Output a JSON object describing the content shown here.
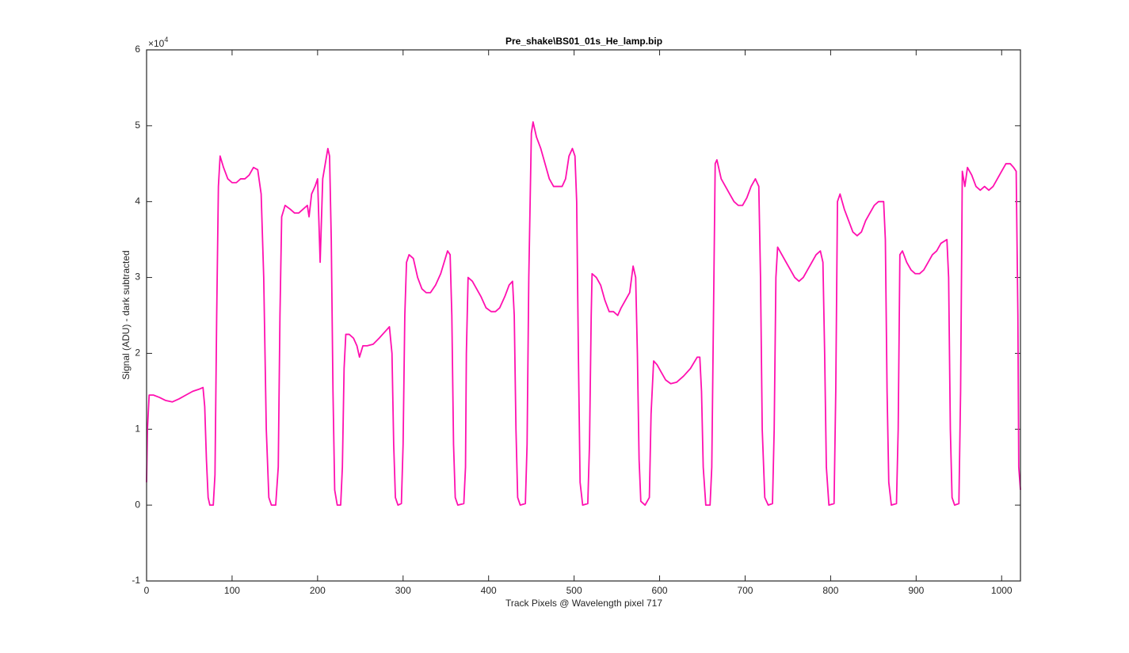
{
  "chart_data": {
    "type": "line",
    "title": "Pre_shake\\BS01_01s_He_lamp.bip",
    "x_label": "Track Pixels @ Wavelength pixel 717",
    "y_label": "Signal (ADU) - dark subtracted",
    "y_multiplier_base": "×10",
    "y_multiplier_exponent": "4",
    "color": "#ff10b0",
    "xlim": [
      0,
      1022
    ],
    "ylim": [
      -1,
      6
    ],
    "xticks": [
      0,
      100,
      200,
      300,
      400,
      500,
      600,
      700,
      800,
      900,
      1000
    ],
    "yticks": [
      -1,
      0,
      1,
      2,
      3,
      4,
      5,
      6
    ],
    "grid": false,
    "x": [
      0,
      1,
      3,
      8,
      15,
      22,
      30,
      38,
      46,
      54,
      62,
      66,
      68,
      70,
      72,
      74,
      78,
      80,
      82,
      84,
      86,
      90,
      95,
      100,
      105,
      110,
      115,
      120,
      125,
      130,
      134,
      137,
      140,
      143,
      146,
      151,
      154,
      156,
      158,
      162,
      168,
      173,
      178,
      183,
      188,
      190,
      193,
      197,
      200,
      203,
      206,
      209,
      212,
      214,
      216,
      218,
      220,
      223,
      227,
      229,
      231,
      233,
      237,
      242,
      246,
      249,
      253,
      258,
      265,
      272,
      280,
      284,
      287,
      289,
      291,
      294,
      298,
      300,
      302,
      304,
      307,
      312,
      317,
      322,
      327,
      332,
      338,
      344,
      348,
      352,
      355,
      357,
      359,
      361,
      364,
      371,
      373,
      374,
      376,
      381,
      386,
      391,
      397,
      403,
      408,
      413,
      419,
      424,
      428,
      430,
      432,
      434,
      437,
      443,
      445,
      447,
      450,
      452,
      456,
      461,
      466,
      471,
      476,
      481,
      486,
      490,
      494,
      498,
      501,
      503,
      505,
      507,
      510,
      516,
      518,
      520,
      521,
      526,
      531,
      536,
      541,
      546,
      551,
      555,
      560,
      565,
      569,
      572,
      574,
      576,
      578,
      583,
      588,
      590,
      593,
      597,
      602,
      607,
      613,
      620,
      628,
      636,
      644,
      647,
      649,
      651,
      654,
      659,
      661,
      663,
      665,
      667,
      672,
      677,
      682,
      687,
      692,
      697,
      702,
      707,
      712,
      716,
      718,
      720,
      723,
      727,
      732,
      734,
      736,
      738,
      743,
      748,
      753,
      758,
      763,
      768,
      773,
      778,
      783,
      788,
      791,
      793,
      795,
      798,
      804,
      806,
      808,
      811,
      816,
      821,
      826,
      831,
      836,
      841,
      846,
      851,
      856,
      862,
      864,
      866,
      868,
      871,
      877,
      879,
      881,
      884,
      889,
      894,
      899,
      904,
      909,
      914,
      919,
      924,
      929,
      936,
      938,
      940,
      942,
      945,
      950,
      952,
      954,
      957,
      960,
      965,
      970,
      975,
      980,
      985,
      990,
      995,
      1000,
      1005,
      1010,
      1014,
      1017,
      1019,
      1020,
      1022
    ],
    "values": [
      0.3,
      1.0,
      1.45,
      1.45,
      1.42,
      1.38,
      1.36,
      1.4,
      1.45,
      1.5,
      1.53,
      1.55,
      1.3,
      0.6,
      0.1,
      0.0,
      0.0,
      0.4,
      2.5,
      4.2,
      4.6,
      4.45,
      4.3,
      4.25,
      4.25,
      4.3,
      4.3,
      4.35,
      4.45,
      4.42,
      4.1,
      3.0,
      1.0,
      0.1,
      0.0,
      0.0,
      0.5,
      2.5,
      3.8,
      3.95,
      3.9,
      3.85,
      3.85,
      3.9,
      3.95,
      3.8,
      4.1,
      4.2,
      4.3,
      3.2,
      4.3,
      4.5,
      4.7,
      4.6,
      3.5,
      1.5,
      0.2,
      0.0,
      0.0,
      0.5,
      1.8,
      2.25,
      2.25,
      2.2,
      2.1,
      1.95,
      2.1,
      2.1,
      2.12,
      2.2,
      2.3,
      2.35,
      2.0,
      0.8,
      0.1,
      0.0,
      0.02,
      0.8,
      2.5,
      3.2,
      3.3,
      3.25,
      3.0,
      2.85,
      2.8,
      2.8,
      2.9,
      3.05,
      3.2,
      3.35,
      3.3,
      2.5,
      0.8,
      0.1,
      0.0,
      0.02,
      0.5,
      2.0,
      3.0,
      2.95,
      2.85,
      2.75,
      2.6,
      2.55,
      2.55,
      2.6,
      2.75,
      2.9,
      2.95,
      2.5,
      1.0,
      0.1,
      0.0,
      0.02,
      0.8,
      3.0,
      4.9,
      5.05,
      4.85,
      4.7,
      4.5,
      4.3,
      4.2,
      4.2,
      4.2,
      4.3,
      4.6,
      4.7,
      4.6,
      4.0,
      2.0,
      0.3,
      0.0,
      0.02,
      0.8,
      2.5,
      3.05,
      3.0,
      2.9,
      2.7,
      2.55,
      2.55,
      2.5,
      2.6,
      2.7,
      2.8,
      3.15,
      3.0,
      2.0,
      0.6,
      0.05,
      0.0,
      0.1,
      1.2,
      1.9,
      1.85,
      1.75,
      1.65,
      1.6,
      1.62,
      1.7,
      1.8,
      1.95,
      1.95,
      1.5,
      0.5,
      0.0,
      0.0,
      0.5,
      2.5,
      4.5,
      4.55,
      4.3,
      4.2,
      4.1,
      4.0,
      3.95,
      3.95,
      4.05,
      4.2,
      4.3,
      4.2,
      3.0,
      1.0,
      0.1,
      0.0,
      0.02,
      1.0,
      3.0,
      3.4,
      3.3,
      3.2,
      3.1,
      3.0,
      2.95,
      3.0,
      3.1,
      3.2,
      3.3,
      3.35,
      3.2,
      2.0,
      0.5,
      0.0,
      0.02,
      1.5,
      4.0,
      4.1,
      3.9,
      3.75,
      3.6,
      3.55,
      3.6,
      3.75,
      3.85,
      3.95,
      4.0,
      4.0,
      3.5,
      1.5,
      0.3,
      0.0,
      0.02,
      1.0,
      3.3,
      3.35,
      3.2,
      3.1,
      3.05,
      3.05,
      3.1,
      3.2,
      3.3,
      3.35,
      3.45,
      3.5,
      3.0,
      1.0,
      0.1,
      0.0,
      0.02,
      1.5,
      4.4,
      4.2,
      4.45,
      4.35,
      4.2,
      4.15,
      4.2,
      4.15,
      4.2,
      4.3,
      4.4,
      4.5,
      4.5,
      4.45,
      4.4,
      2.5,
      0.5,
      0.2
    ]
  }
}
